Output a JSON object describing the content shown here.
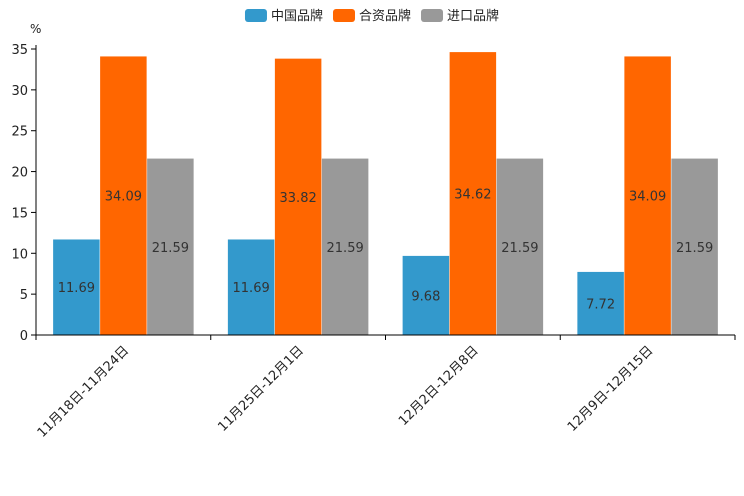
{
  "chart_data": {
    "type": "bar",
    "title": "",
    "xlabel": "",
    "ylabel": "%",
    "ylim": [
      0,
      35
    ],
    "yticks": [
      0,
      5,
      10,
      15,
      20,
      25,
      30,
      35
    ],
    "legend_position": "top-center",
    "categories": [
      "11月18日-11月24日",
      "11月25日-12月1日",
      "12月2日-12月8日",
      "12月9日-12月15日"
    ],
    "series": [
      {
        "name": "中国品牌",
        "color": "#3399cc",
        "values": [
          11.69,
          11.69,
          9.68,
          7.72
        ]
      },
      {
        "name": "合资品牌",
        "color": "#ff6600",
        "values": [
          34.09,
          33.82,
          34.62,
          34.09
        ]
      },
      {
        "name": "进口品牌",
        "color": "#999999",
        "values": [
          21.59,
          21.59,
          21.59,
          21.59
        ]
      }
    ]
  }
}
